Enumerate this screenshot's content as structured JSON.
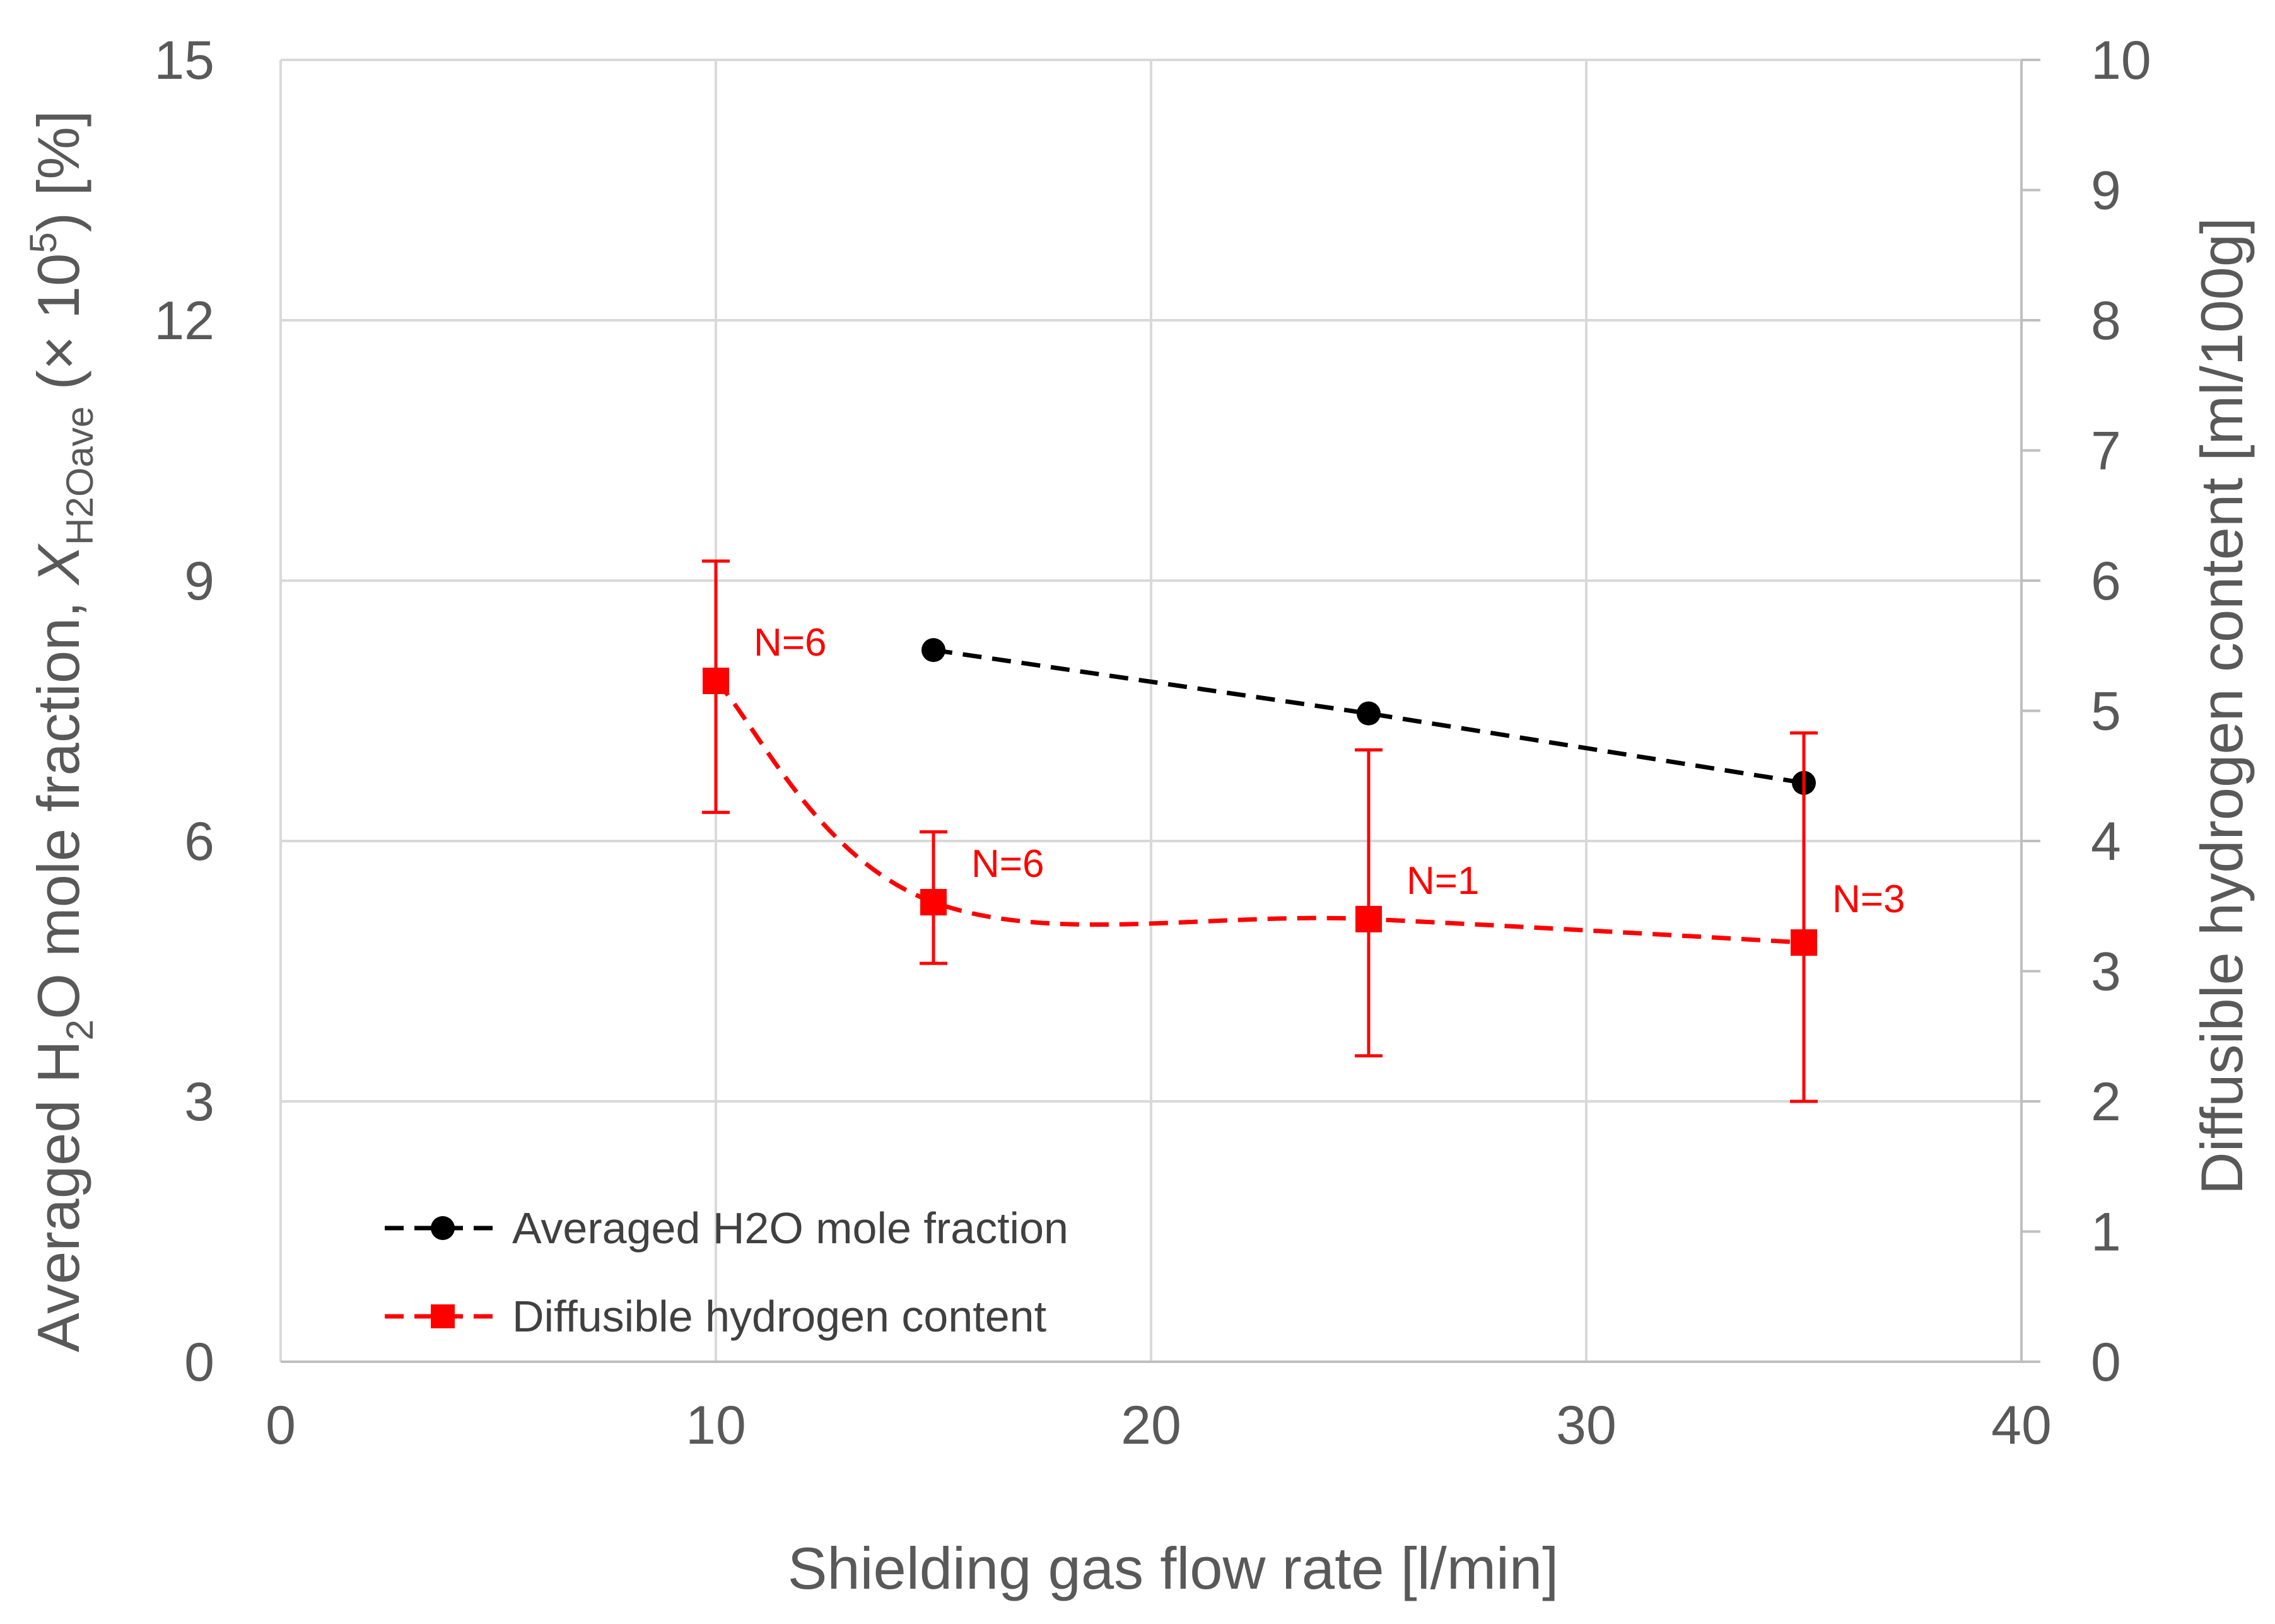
{
  "chart_data": {
    "type": "line",
    "title": "",
    "xlabel": "Shielding gas flow rate [l/min]",
    "ylabel_left": {
      "text_main": "Averaged H",
      "text_sub1": "2",
      "text_mid": "O mole fraction, ",
      "text_italic": "X",
      "text_sub2": "H2Oave",
      "text_paren": " (× 10",
      "text_sup": "5",
      "text_end": ") [%]"
    },
    "ylabel_right": "Diffusible hydrogen content [ml/100g]",
    "xlim": [
      0,
      40
    ],
    "ylim_left": [
      0,
      15
    ],
    "ylim_right": [
      0,
      10
    ],
    "x_ticks": [
      "0",
      "10",
      "20",
      "30",
      "40"
    ],
    "y_left_ticks": [
      "0",
      "3",
      "6",
      "9",
      "12",
      "15"
    ],
    "y_right_ticks": [
      "0",
      "1",
      "2",
      "3",
      "4",
      "5",
      "6",
      "7",
      "8",
      "9",
      "10"
    ],
    "grid": true,
    "legend_position": "bottom-left",
    "series": [
      {
        "name": "Averaged H2O mole fraction",
        "axis": "left",
        "color": "#000000",
        "marker": "circle",
        "line": "dashed",
        "x": [
          15,
          25,
          35
        ],
        "y": [
          8.2,
          7.47,
          6.67
        ]
      },
      {
        "name": "Diffusible hydrogen content",
        "axis": "right",
        "color": "#ff0000",
        "marker": "square",
        "line": "dashed-smooth",
        "x": [
          10,
          15,
          25,
          35
        ],
        "y": [
          5.23,
          3.53,
          3.4,
          3.22
        ],
        "err_low": [
          4.22,
          3.06,
          2.35,
          2.0
        ],
        "err_high": [
          6.15,
          4.07,
          4.7,
          4.83
        ],
        "annotations": [
          "N=6",
          "N=6",
          "N=1",
          "N=3"
        ]
      }
    ]
  }
}
